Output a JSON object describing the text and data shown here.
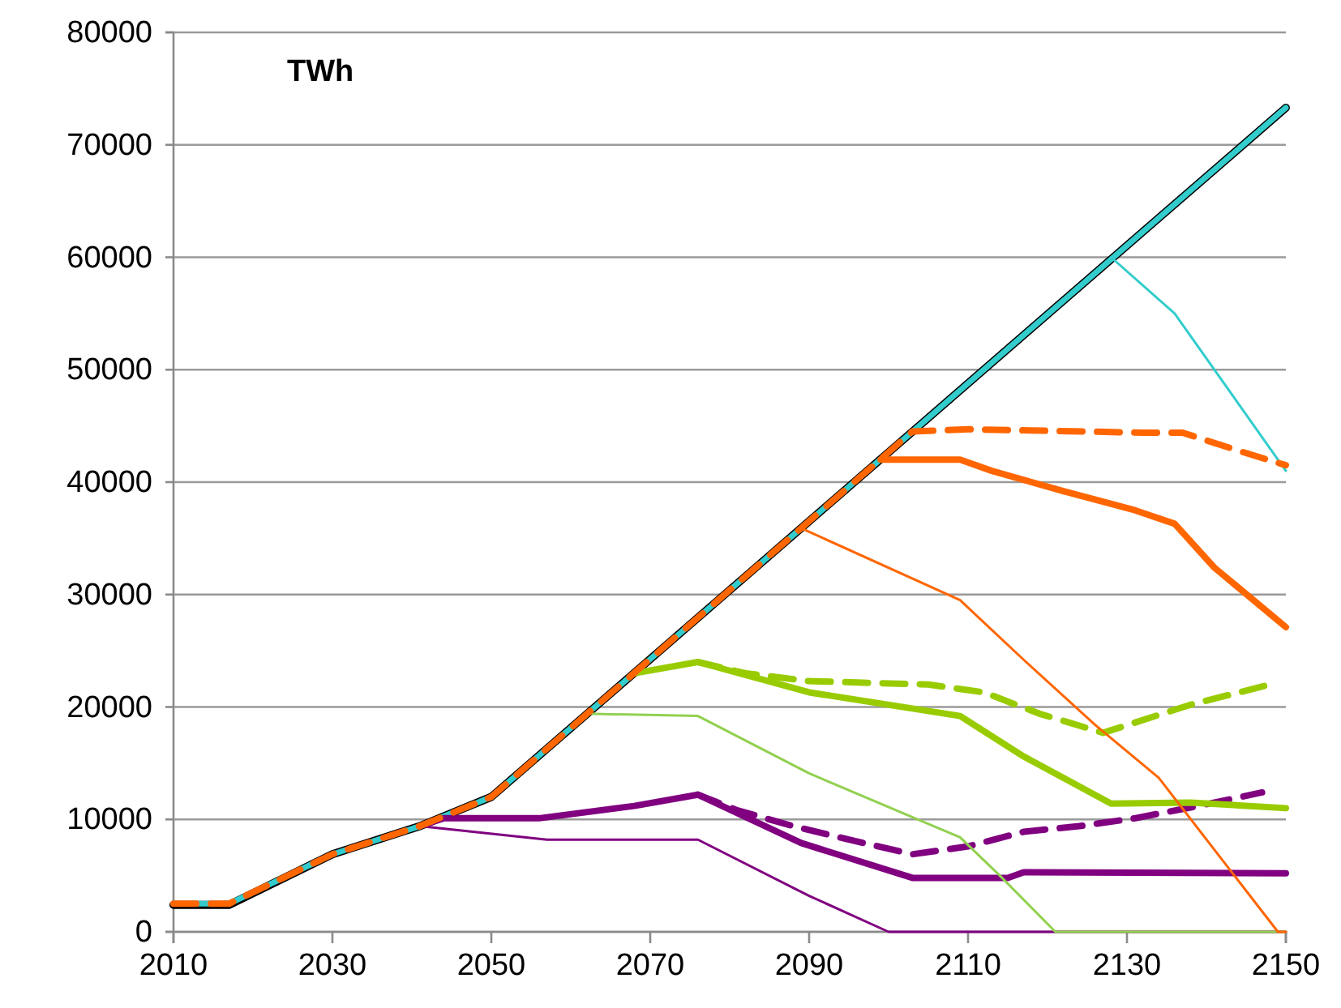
{
  "chart_data": {
    "type": "line",
    "ylabel": "TWh",
    "xlim": [
      2010,
      2150
    ],
    "xticks": [
      2010,
      2030,
      2050,
      2070,
      2090,
      2110,
      2130,
      2150
    ],
    "ylim": [
      0,
      80000
    ],
    "yticks": [
      0,
      10000,
      20000,
      30000,
      40000,
      50000,
      60000,
      70000,
      80000
    ],
    "grid": "y",
    "marker": "none",
    "series": [
      {
        "color": "#000000",
        "line_style": "solid",
        "x": [
          2010,
          2017,
          2030,
          2041,
          2050,
          2150
        ],
        "values": [
          2400,
          2400,
          6900,
          9400,
          12000,
          73300
        ]
      },
      {
        "color": "#33cccc",
        "line_style": "solid",
        "x": [
          2010,
          2017,
          2030,
          2041,
          2050,
          2150
        ],
        "values": [
          2500,
          2500,
          6900,
          9400,
          12000,
          73300
        ]
      },
      {
        "color": "#33cccc",
        "line_style": "solid",
        "x": [
          2128,
          2136,
          2150
        ],
        "values": [
          60000,
          55000,
          41000
        ]
      },
      {
        "color": "#800080",
        "line_style": "solid",
        "x": [
          2041,
          2057,
          2076,
          2090,
          2100,
          2150
        ],
        "values": [
          9400,
          8200,
          8200,
          3200,
          0,
          0
        ]
      },
      {
        "color": "#800080",
        "line_style": "solid",
        "x": [
          2041,
          2044,
          2056,
          2068,
          2076,
          2089,
          2103,
          2115,
          2117,
          2150
        ],
        "values": [
          9400,
          10100,
          10100,
          11200,
          12200,
          7900,
          4800,
          4800,
          5300,
          5200
        ]
      },
      {
        "color": "#800080",
        "line_style": "dashed",
        "x": [
          2076,
          2081,
          2088,
          2095,
          2103,
          2110,
          2117,
          2124,
          2131,
          2139,
          2147
        ],
        "values": [
          12200,
          10800,
          9400,
          8200,
          6900,
          7600,
          8900,
          9400,
          10100,
          11200,
          12400
        ]
      },
      {
        "color": "#92d050",
        "line_style": "solid",
        "x": [
          2062,
          2076,
          2090,
          2109,
          2114,
          2121,
          2150
        ],
        "values": [
          19400,
          19200,
          14100,
          8400,
          5000,
          0,
          0
        ]
      },
      {
        "color": "#99cc00",
        "line_style": "solid",
        "x": [
          2068,
          2076,
          2090,
          2109,
          2117,
          2128,
          2138,
          2150
        ],
        "values": [
          23000,
          24000,
          21300,
          19200,
          15600,
          11400,
          11500,
          11000
        ]
      },
      {
        "color": "#99cc00",
        "line_style": "dashed",
        "x": [
          2076,
          2082,
          2090,
          2105,
          2112,
          2119,
          2127,
          2138,
          2148
        ],
        "values": [
          24000,
          23000,
          22300,
          22000,
          21300,
          19400,
          17700,
          20200,
          22000
        ]
      },
      {
        "color": "#ff6600",
        "line_style": "solid",
        "x": [
          2089,
          2109,
          2117,
          2126,
          2134,
          2149,
          2150
        ],
        "values": [
          35900,
          29500,
          24200,
          18400,
          13700,
          0,
          0
        ]
      },
      {
        "color": "#ff6600",
        "line_style": "solid",
        "x": [
          2099,
          2109,
          2113,
          2122,
          2131,
          2136,
          2141,
          2150
        ],
        "values": [
          42000,
          42000,
          41000,
          39200,
          37500,
          36300,
          32400,
          27100
        ]
      },
      {
        "color": "#ff6600",
        "line_style": "dashed",
        "x": [
          2010,
          2017,
          2030,
          2041,
          2050,
          2103,
          2110,
          2132,
          2137,
          2144,
          2150
        ],
        "values": [
          2500,
          2500,
          6900,
          9400,
          12000,
          44500,
          44700,
          44400,
          44400,
          42800,
          41500
        ]
      }
    ]
  }
}
